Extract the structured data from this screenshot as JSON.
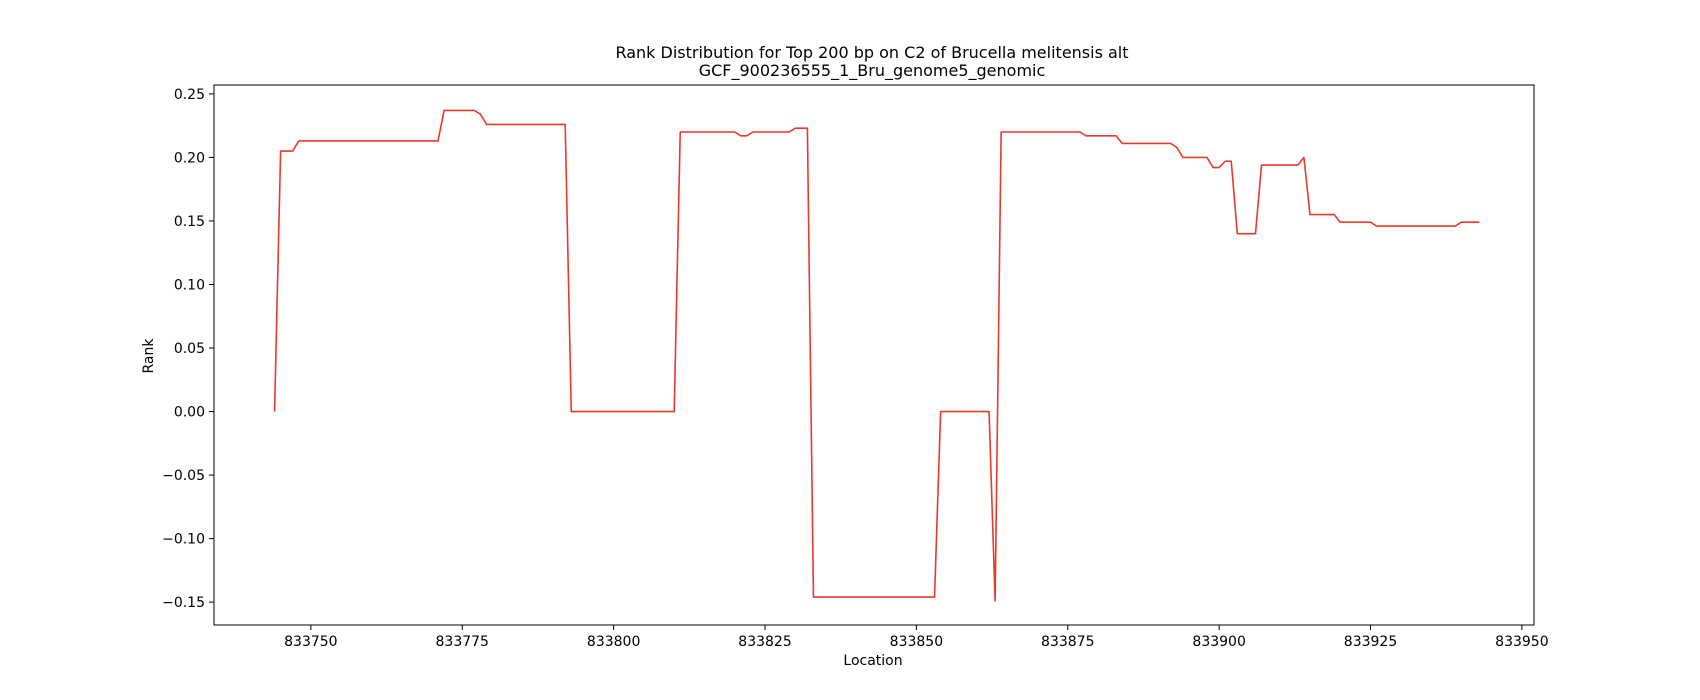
{
  "chart_data": {
    "type": "line",
    "title": "Rank Distribution for Top 200 bp on C2 of Brucella melitensis alt",
    "subtitle": "GCF_900236555_1_Bru_genome5_genomic",
    "xlabel": "Location",
    "ylabel": "Rank",
    "xlim": [
      833734,
      833952
    ],
    "ylim": [
      -0.168,
      0.257
    ],
    "xticks": [
      833750,
      833775,
      833800,
      833825,
      833850,
      833875,
      833900,
      833925,
      833950
    ],
    "xtick_labels": [
      "833750",
      "833775",
      "833800",
      "833825",
      "833850",
      "833875",
      "833900",
      "833925",
      "833950"
    ],
    "yticks": [
      0.25,
      0.2,
      0.15,
      0.1,
      0.05,
      0.0,
      -0.05,
      -0.1,
      -0.15
    ],
    "ytick_labels": [
      "0.25",
      "0.20",
      "0.15",
      "0.10",
      "0.05",
      "0.00",
      "−0.05",
      "−0.10",
      "−0.15"
    ],
    "grid": false,
    "legend": "none",
    "line_color": "#e8392b",
    "series": [
      {
        "points": [
          [
            833744,
            0.0
          ],
          [
            833745,
            0.205
          ],
          [
            833747,
            0.205
          ],
          [
            833748,
            0.213
          ],
          [
            833771,
            0.213
          ],
          [
            833772,
            0.237
          ],
          [
            833777,
            0.237
          ],
          [
            833778,
            0.234
          ],
          [
            833779,
            0.226
          ],
          [
            833792,
            0.226
          ],
          [
            833793,
            0.0
          ],
          [
            833810,
            0.0
          ],
          [
            833811,
            0.22
          ],
          [
            833820,
            0.22
          ],
          [
            833821,
            0.217
          ],
          [
            833822,
            0.217
          ],
          [
            833823,
            0.22
          ],
          [
            833829,
            0.22
          ],
          [
            833830,
            0.223
          ],
          [
            833832,
            0.223
          ],
          [
            833833,
            -0.146
          ],
          [
            833853,
            -0.146
          ],
          [
            833854,
            0.0
          ],
          [
            833862,
            0.0
          ],
          [
            833863,
            -0.149
          ],
          [
            833864,
            0.22
          ],
          [
            833877,
            0.22
          ],
          [
            833878,
            0.217
          ],
          [
            833883,
            0.217
          ],
          [
            833884,
            0.211
          ],
          [
            833892,
            0.211
          ],
          [
            833893,
            0.208
          ],
          [
            833894,
            0.2
          ],
          [
            833898,
            0.2
          ],
          [
            833899,
            0.192
          ],
          [
            833900,
            0.192
          ],
          [
            833901,
            0.197
          ],
          [
            833902,
            0.197
          ],
          [
            833903,
            0.14
          ],
          [
            833906,
            0.14
          ],
          [
            833907,
            0.194
          ],
          [
            833913,
            0.194
          ],
          [
            833914,
            0.2
          ],
          [
            833915,
            0.155
          ],
          [
            833919,
            0.155
          ],
          [
            833920,
            0.149
          ],
          [
            833925,
            0.149
          ],
          [
            833926,
            0.146
          ],
          [
            833939,
            0.146
          ],
          [
            833940,
            0.149
          ],
          [
            833943,
            0.149
          ]
        ]
      }
    ]
  }
}
